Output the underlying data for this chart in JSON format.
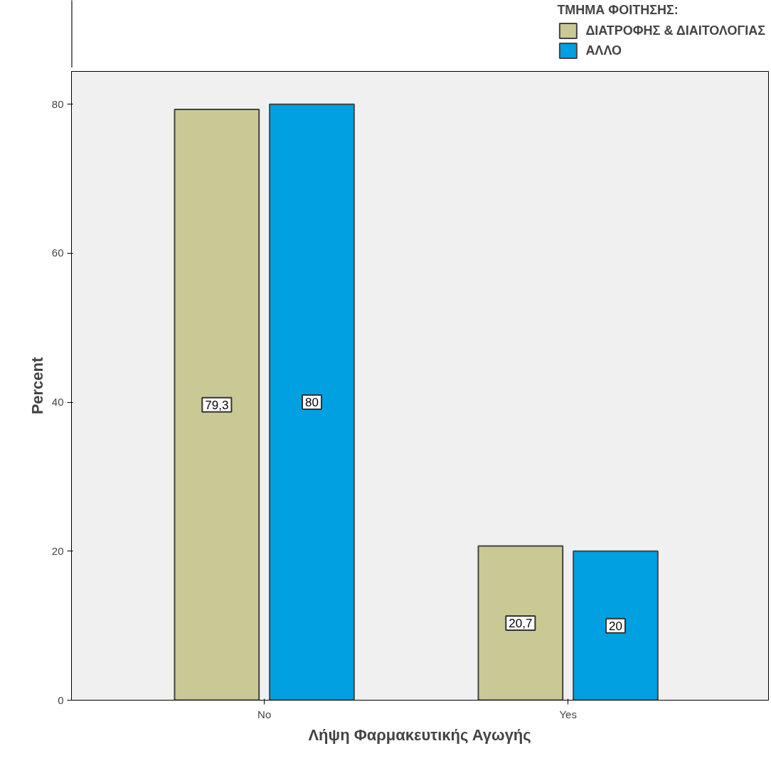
{
  "chart_data": {
    "type": "bar",
    "xlabel": "Λήψη Φαρμακευτικής Αγωγής",
    "ylabel": "Percent",
    "legend_title": "ΤΜΗΜΑ ΦΟΙΤΗΣΗΣ:",
    "categories": [
      "No",
      "Yes"
    ],
    "series": [
      {
        "name": "ΔΙΑΤΡΟΦΗΣ & ΔΙΑΙΤΟΛΟΓΙΑΣ",
        "color": "#c9c995",
        "values": [
          79.3,
          20.7
        ],
        "value_labels": [
          "79,3",
          "20,7"
        ]
      },
      {
        "name": "ΑΛΛΟ",
        "color": "#00a0e1",
        "values": [
          80,
          20
        ],
        "value_labels": [
          "80",
          "20"
        ]
      }
    ],
    "ylim": [
      0,
      84.4
    ],
    "yticks": [
      0,
      20,
      40,
      60,
      80
    ],
    "grid": false,
    "legend": "top right"
  }
}
